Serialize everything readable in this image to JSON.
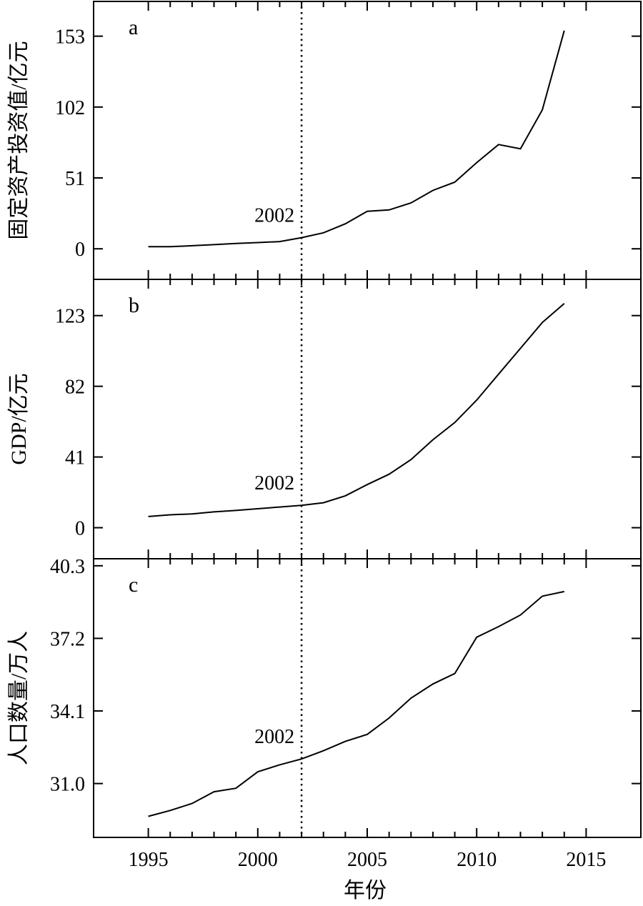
{
  "chart_data": [
    {
      "type": "line",
      "panel": "a",
      "ylabel": "固定资产投资值/亿元",
      "yticks": [
        0,
        51,
        102,
        153
      ],
      "ylim": [
        -22,
        178
      ],
      "xlim": [
        1992.5,
        2017.5
      ],
      "annotation": {
        "text": "2002",
        "x": 2002
      },
      "series": [
        {
          "x": [
            1995,
            1996,
            1997,
            1998,
            1999,
            2000,
            2001,
            2002,
            2003,
            2004,
            2005,
            2006,
            2007,
            2008,
            2009,
            2010,
            2011,
            2012,
            2013,
            2014
          ],
          "values": [
            1.5,
            1.5,
            2.2,
            3,
            3.8,
            4.5,
            5.2,
            8,
            11.5,
            18,
            27,
            28,
            33,
            42,
            48,
            62,
            75,
            72,
            100,
            157
          ]
        }
      ]
    },
    {
      "type": "line",
      "panel": "b",
      "ylabel": "GDP/亿元",
      "yticks": [
        0,
        41,
        82,
        123
      ],
      "ylim": [
        -18,
        144
      ],
      "xlim": [
        1992.5,
        2017.5
      ],
      "annotation": {
        "text": "2002",
        "x": 2002
      },
      "series": [
        {
          "x": [
            1995,
            1996,
            1997,
            1998,
            1999,
            2000,
            2001,
            2002,
            2003,
            2004,
            2005,
            2006,
            2007,
            2008,
            2009,
            2010,
            2011,
            2012,
            2013,
            2014
          ],
          "values": [
            6.5,
            7.5,
            8,
            9.2,
            10,
            11,
            12,
            13,
            14.5,
            18.5,
            25,
            31,
            39.5,
            51,
            61,
            74,
            89,
            104,
            119,
            130
          ]
        }
      ]
    },
    {
      "type": "line",
      "panel": "c",
      "ylabel": "人口数量/万人",
      "yticks": [
        31.0,
        34.1,
        37.2,
        40.3
      ],
      "ytick_labels": [
        "31.0",
        "34.1",
        "37.2",
        "40.3"
      ],
      "ylim": [
        28.7,
        40.6
      ],
      "xlim": [
        1992.5,
        2017.5
      ],
      "xticks": [
        1995,
        2000,
        2005,
        2010,
        2015
      ],
      "xlabel": "年份",
      "annotation": {
        "text": "2002",
        "x": 2002
      },
      "series": [
        {
          "x": [
            1995,
            1996,
            1997,
            1998,
            1999,
            2000,
            2001,
            2002,
            2003,
            2004,
            2005,
            2006,
            2007,
            2008,
            2009,
            2010,
            2011,
            2012,
            2013,
            2014
          ],
          "values": [
            29.6,
            29.85,
            30.15,
            30.65,
            30.8,
            31.5,
            31.8,
            32.05,
            32.4,
            32.8,
            33.1,
            33.8,
            34.65,
            35.25,
            35.7,
            37.25,
            37.7,
            38.2,
            39.0,
            39.2
          ]
        }
      ]
    }
  ]
}
